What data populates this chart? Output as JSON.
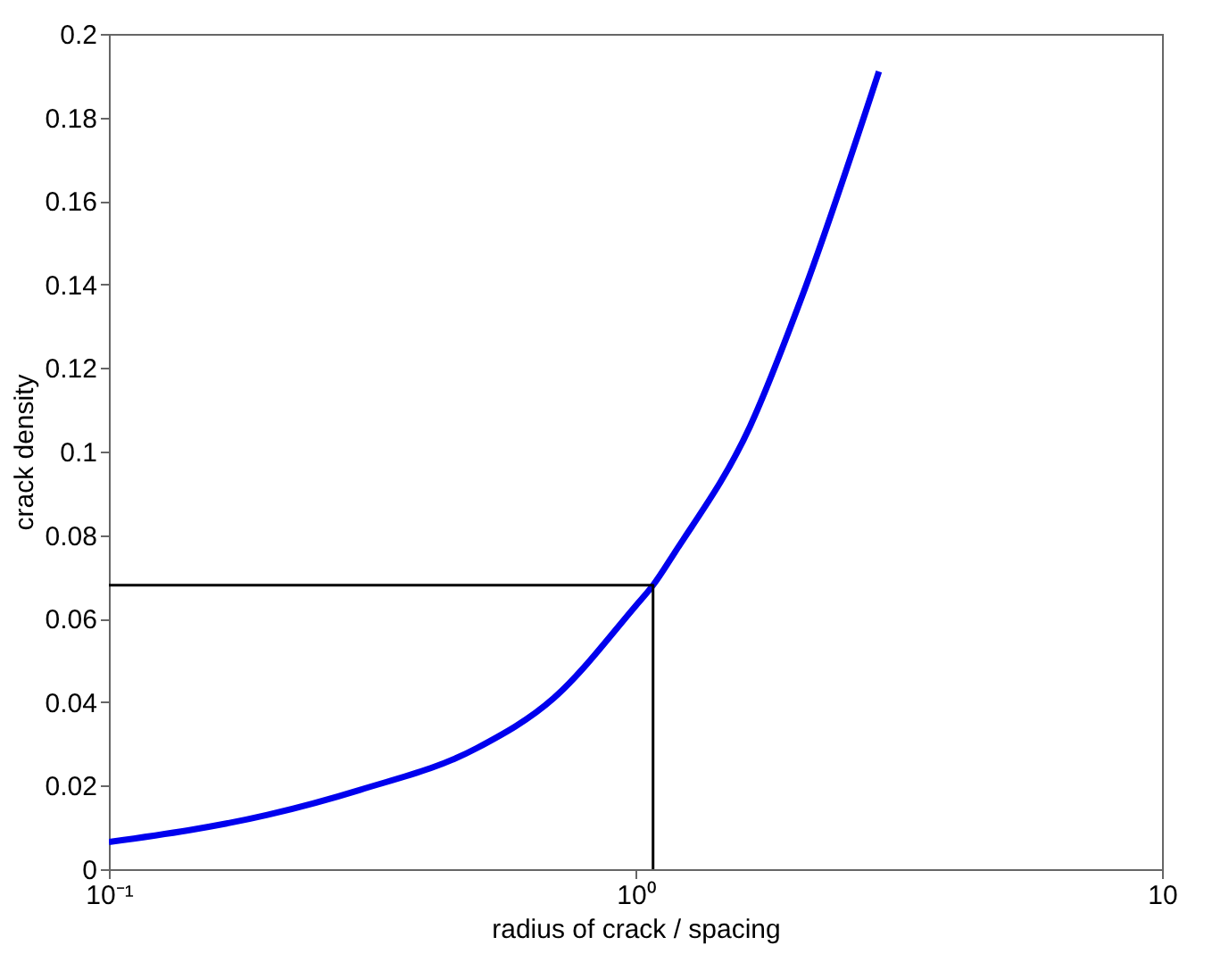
{
  "chart_data": {
    "type": "line",
    "xlabel": "radius of crack / spacing",
    "ylabel": "crack density",
    "log": "x",
    "xlim": [
      0.1,
      10
    ],
    "xticks": [
      {
        "value": 0.1,
        "label": "10⁻¹"
      },
      {
        "value": 1,
        "label": "10⁰"
      },
      {
        "value": 10,
        "label": "10"
      }
    ],
    "ylim": [
      0,
      0.2
    ],
    "yticks": [
      0,
      0.02,
      0.04,
      0.06,
      0.08,
      0.1,
      0.12,
      0.14,
      0.16,
      0.18,
      0.2
    ],
    "grid": false,
    "line_style": "solid",
    "marker": "none",
    "series": [
      {
        "color": "#0000ee",
        "x": [
          0.1,
          0.2,
          0.3,
          0.5,
          0.7,
          1.0,
          1.08,
          1.19,
          1.65,
          2.07,
          2.9
        ],
        "values": [
          0.0065,
          0.013,
          0.019,
          0.029,
          0.041,
          0.063,
          0.068,
          0.076,
          0.106,
          0.137,
          0.191
        ]
      },
      {
        "color": "#000000",
        "x": [
          0.1,
          1.08,
          1.08
        ],
        "values": [
          0.068,
          0.068,
          0
        ]
      }
    ]
  }
}
